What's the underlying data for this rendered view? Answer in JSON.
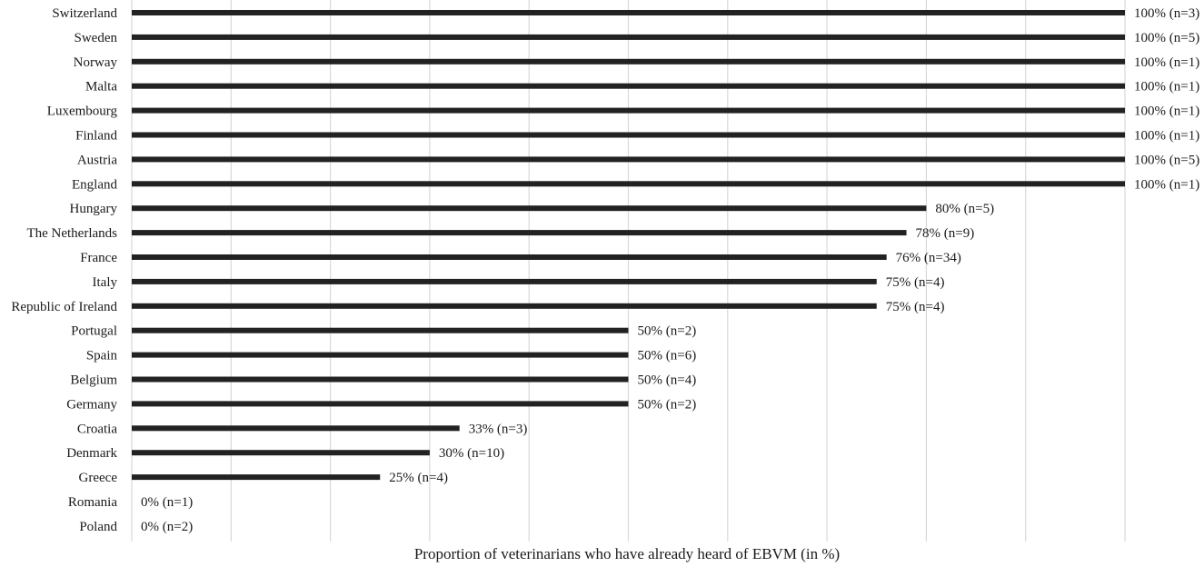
{
  "chart_data": {
    "type": "bar",
    "orientation": "horizontal",
    "xlabel": "Proportion of veterinarians who have already heard of EBVM (in %)",
    "ylabel": "",
    "title": "",
    "xlim": [
      0,
      100
    ],
    "grid": true,
    "grid_interval": 10,
    "bar_color": "#222222",
    "categories": [
      "Switzerland",
      "Sweden",
      "Norway",
      "Malta",
      "Luxembourg",
      "Finland",
      "Austria",
      "England",
      "Hungary",
      "The Netherlands",
      "France",
      "Italy",
      "Republic of Ireland",
      "Portugal",
      "Spain",
      "Belgium",
      "Germany",
      "Croatia",
      "Denmark",
      "Greece",
      "Romania",
      "Poland"
    ],
    "values": [
      100,
      100,
      100,
      100,
      100,
      100,
      100,
      100,
      80,
      78,
      76,
      75,
      75,
      50,
      50,
      50,
      50,
      33,
      30,
      25,
      0,
      0
    ],
    "data_labels": [
      "100% (n=3)",
      "100% (n=5)",
      "100% (n=1)",
      "100% (n=1)",
      "100% (n=1)",
      "100% (n=1)",
      "100% (n=5)",
      "100% (n=1)",
      "80% (n=5)",
      "78% (n=9)",
      "76% (n=34)",
      "75% (n=4)",
      "75% (n=4)",
      "50% (n=2)",
      "50% (n=6)",
      "50% (n=4)",
      "50% (n=2)",
      "33% (n=3)",
      "30% (n=10)",
      "25% (n=4)",
      "0% (n=1)",
      "0% (n=2)"
    ]
  }
}
